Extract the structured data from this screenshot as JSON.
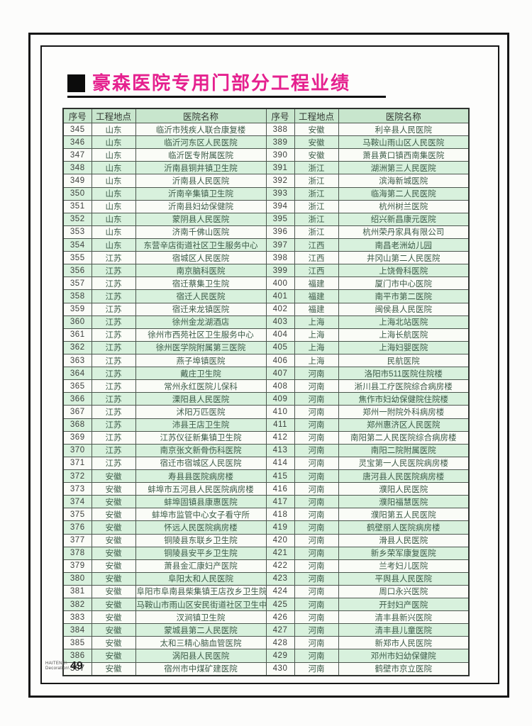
{
  "page": {
    "title": "豪森医院专用门部分工程业绩",
    "brand_line1": "HAITENG\\",
    "brand_line2": "Decoration\\",
    "page_number": "49"
  },
  "colors": {
    "title_pink": "#e5208e",
    "header_green": "#c8e6cd",
    "row_green": "#d8f1dd",
    "row_white": "#fafcf7",
    "frame_black": "#161616"
  },
  "table": {
    "headers": [
      "序号",
      "工程地点",
      "医院名称",
      "序号",
      "工程地点",
      "医院名称"
    ],
    "rows": [
      [
        "345",
        "山东",
        "临沂市残疾人联合康复楼",
        "388",
        "安徽",
        "利辛县人民医院"
      ],
      [
        "346",
        "山东",
        "临沂河东区人民医院",
        "389",
        "安徽",
        "马鞍山雨山区人民医院"
      ],
      [
        "347",
        "山东",
        "临沂医专附属医院",
        "390",
        "安徽",
        "萧县黄口镇西南集医院"
      ],
      [
        "348",
        "山东",
        "沂南县铜井镇卫生院",
        "391",
        "浙江",
        "湖洲第三人民医院"
      ],
      [
        "349",
        "山东",
        "沂南县人民医院",
        "392",
        "浙江",
        "滨海新城医院"
      ],
      [
        "350",
        "山东",
        "沂南辛集镇卫生院",
        "393",
        "浙江",
        "临海第二人民医院"
      ],
      [
        "351",
        "山东",
        "沂南县妇幼保健院",
        "394",
        "浙江",
        "杭州树兰医院"
      ],
      [
        "352",
        "山东",
        "蒙阴县人民医院",
        "395",
        "浙江",
        "绍兴新昌康元医院"
      ],
      [
        "353",
        "山东",
        "济南千佛山医院",
        "396",
        "浙江",
        "杭州荣丹家具有限公司"
      ],
      [
        "354",
        "山东",
        "东营辛店街道社区卫生服务中心",
        "397",
        "江西",
        "南昌老洲幼儿园"
      ],
      [
        "355",
        "江苏",
        "宿城区人民医院",
        "398",
        "江西",
        "井冈山第二人民医院"
      ],
      [
        "356",
        "江苏",
        "南京脑科医院",
        "399",
        "江西",
        "上饶骨科医院"
      ],
      [
        "357",
        "江苏",
        "宿迁蔡集卫生院",
        "400",
        "福建",
        "厦门市中心医院"
      ],
      [
        "358",
        "江苏",
        "宿迁人民医院",
        "401",
        "福建",
        "南平市第二医院"
      ],
      [
        "359",
        "江苏",
        "宿迁来龙镇医院",
        "402",
        "福建",
        "闽侯县人民医院"
      ],
      [
        "360",
        "江苏",
        "徐州金龙湖酒店",
        "403",
        "上海",
        "上海北站医院"
      ],
      [
        "361",
        "江苏",
        "徐州市西苑社区卫生服务中心",
        "404",
        "上海",
        "上海长航医院"
      ],
      [
        "362",
        "江苏",
        "徐州医学院附属第三医院",
        "405",
        "上海",
        "上海妇婴医院"
      ],
      [
        "363",
        "江苏",
        "燕子埠镇医院",
        "406",
        "上海",
        "民航医院"
      ],
      [
        "364",
        "江苏",
        "戴庄卫生院",
        "407",
        "河南",
        "洛阳市511医院住院楼"
      ],
      [
        "365",
        "江苏",
        "常州永红医院儿保科",
        "408",
        "河南",
        "淅川县工疗医院综合病房楼"
      ],
      [
        "366",
        "江苏",
        "溧阳县人民医院",
        "409",
        "河南",
        "焦作市妇幼保健院住院楼"
      ],
      [
        "367",
        "江苏",
        "沭阳万匹医院",
        "410",
        "河南",
        "郑州一附院外科病房楼"
      ],
      [
        "368",
        "江苏",
        "沛县王店卫生院",
        "411",
        "河南",
        "郑州惠济区人民医院"
      ],
      [
        "369",
        "江苏",
        "江苏仪征新集镇卫生院",
        "412",
        "河南",
        "南阳第二人民医院综合病房楼"
      ],
      [
        "370",
        "江苏",
        "南京张文新骨伤科医院",
        "413",
        "河南",
        "南阳二院附属医院"
      ],
      [
        "371",
        "江苏",
        "宿迁市宿城区人民医院",
        "414",
        "河南",
        "灵宝第一人民医院病房楼"
      ],
      [
        "372",
        "安徽",
        "寿县县医院病房楼",
        "415",
        "河南",
        "唐河县人民医院病房楼"
      ],
      [
        "373",
        "安徽",
        "蚌埠市五河县人民医院病房楼",
        "416",
        "河南",
        "濮阳人民医院"
      ],
      [
        "374",
        "安徽",
        "蚌埠固镇县康惠医院",
        "417",
        "河南",
        "濮阳福慧医院"
      ],
      [
        "375",
        "安徽",
        "蚌埠市监管中心女子看守所",
        "418",
        "河南",
        "濮阳第五人民医院"
      ],
      [
        "376",
        "安徽",
        "怀远人民医院病房楼",
        "419",
        "河南",
        "鹤壁丽人医院病房楼"
      ],
      [
        "377",
        "安徽",
        "铜陵县东联乡卫生院",
        "420",
        "河南",
        "滑县人民医院"
      ],
      [
        "378",
        "安徽",
        "铜陵县安平乡卫生院",
        "421",
        "河南",
        "新乡荣军康复医院"
      ],
      [
        "379",
        "安徽",
        "萧县金汇康妇产医院",
        "422",
        "河南",
        "兰考妇儿医院"
      ],
      [
        "380",
        "安徽",
        "阜阳太和人民医院",
        "423",
        "河南",
        "平舆县人民医院"
      ],
      [
        "381",
        "安徽",
        "阜阳市阜南县柴集镇王店孜乡卫生院",
        "424",
        "河南",
        "周口永兴医院"
      ],
      [
        "382",
        "安徽",
        "马鞍山市雨山区安民街道社区卫生中心",
        "425",
        "河南",
        "开封妇产医院"
      ],
      [
        "383",
        "安徽",
        "汊涧镇卫生院",
        "426",
        "河南",
        "清丰县新兴医院"
      ],
      [
        "384",
        "安徽",
        "蒙城县第二人民医院",
        "427",
        "河南",
        "清丰县儿童医院"
      ],
      [
        "385",
        "安徽",
        "太和三精心脑血管医院",
        "428",
        "河南",
        "新郑市人民医院"
      ],
      [
        "386",
        "安徽",
        "涡阳县人民医院",
        "429",
        "河南",
        "邓州市妇幼保健院"
      ],
      [
        "387",
        "安徽",
        "宿州市中煤矿建医院",
        "430",
        "河南",
        "鹤壁市京立医院"
      ]
    ]
  }
}
